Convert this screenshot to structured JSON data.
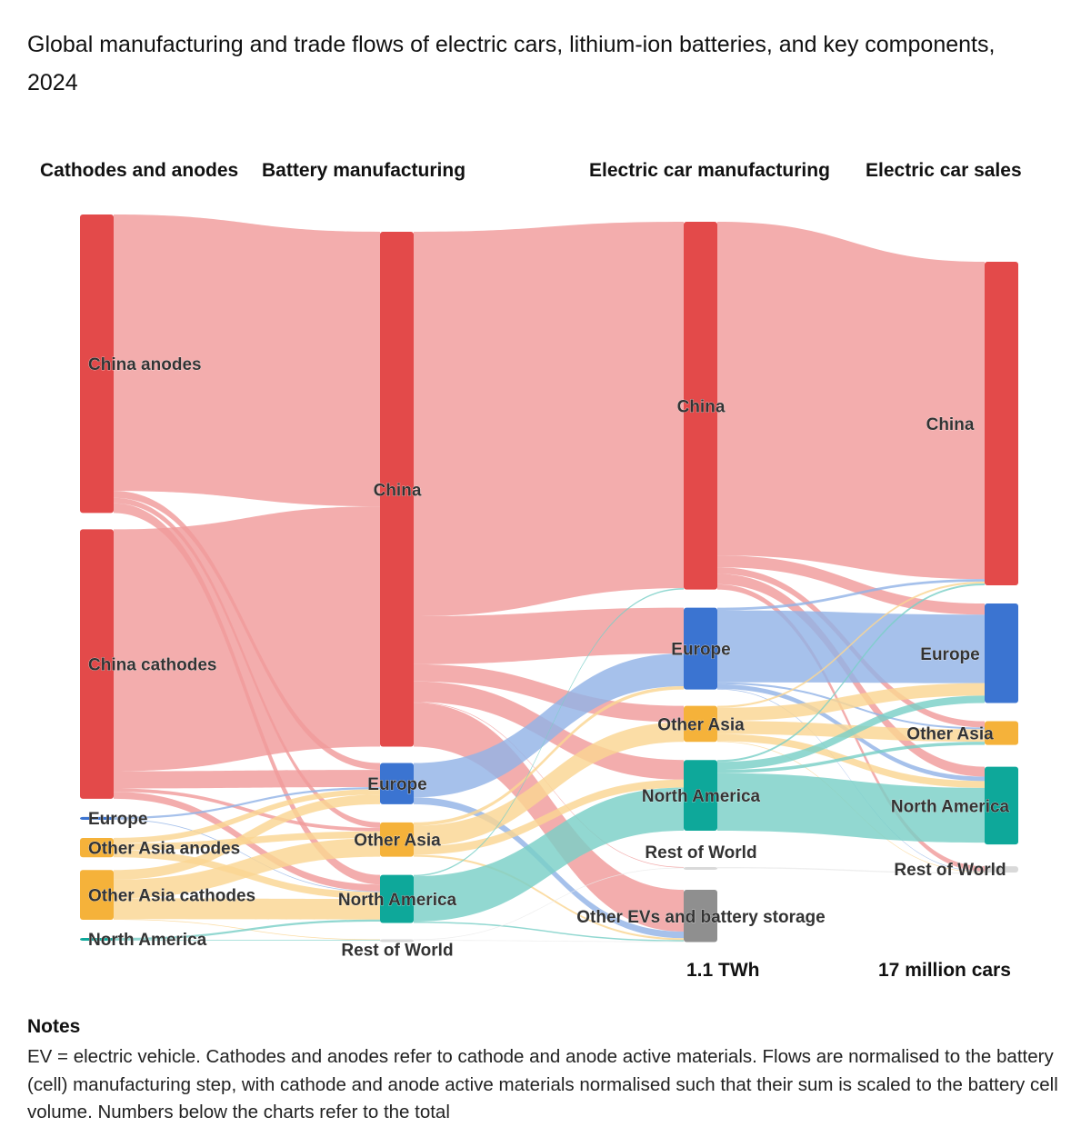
{
  "title": "Global manufacturing and trade flows of electric cars, lithium-ion batteries, and key components, 2024",
  "chart_data": {
    "type": "sankey",
    "title": "Global manufacturing and trade flows of electric cars, lithium-ion batteries, and key components, 2024",
    "stages": [
      "Cathodes and anodes",
      "Battery manufacturing",
      "Electric car manufacturing",
      "Electric car sales"
    ],
    "totals": {
      "battery": "1.1 TWh",
      "cars": "17 million cars"
    },
    "colors": {
      "China": "#e34a4a",
      "Europe": "#3b74d1",
      "Other Asia": "#f5b23a",
      "North America": "#0ea89a",
      "Rest of World": "#d9d9d9",
      "Other EVs and battery storage": "#8f8f8f"
    },
    "nodes": [
      {
        "id": "s0_china_anodes",
        "stage": 0,
        "label": "China anodes",
        "region": "China",
        "value": 432
      },
      {
        "id": "s0_china_cathodes",
        "stage": 0,
        "label": "China cathodes",
        "region": "China",
        "value": 390
      },
      {
        "id": "s0_europe",
        "stage": 0,
        "label": "Europe",
        "region": "Europe",
        "value": 4
      },
      {
        "id": "s0_oa_anodes",
        "stage": 0,
        "label": "Other Asia anodes",
        "region": "Other Asia",
        "value": 28
      },
      {
        "id": "s0_oa_cathodes",
        "stage": 0,
        "label": "Other Asia cathodes",
        "region": "Other Asia",
        "value": 72
      },
      {
        "id": "s0_na",
        "stage": 0,
        "label": "North America",
        "region": "North America",
        "value": 4
      },
      {
        "id": "s1_china",
        "stage": 1,
        "label": "China",
        "region": "China",
        "value": 750
      },
      {
        "id": "s1_europe",
        "stage": 1,
        "label": "Europe",
        "region": "Europe",
        "value": 60
      },
      {
        "id": "s1_oa",
        "stage": 1,
        "label": "Other Asia",
        "region": "Other Asia",
        "value": 50
      },
      {
        "id": "s1_na",
        "stage": 1,
        "label": "North America",
        "region": "North America",
        "value": 70
      },
      {
        "id": "s1_row",
        "stage": 1,
        "label": "Rest of World",
        "region": "Rest of World",
        "value": 2
      },
      {
        "id": "s2_china",
        "stage": 2,
        "label": "China",
        "region": "China",
        "value": 562
      },
      {
        "id": "s2_europe",
        "stage": 2,
        "label": "Europe",
        "region": "Europe",
        "value": 125
      },
      {
        "id": "s2_oa",
        "stage": 2,
        "label": "Other Asia",
        "region": "Other Asia",
        "value": 55
      },
      {
        "id": "s2_na",
        "stage": 2,
        "label": "North America",
        "region": "North America",
        "value": 108
      },
      {
        "id": "s2_row",
        "stage": 2,
        "label": "Rest of World",
        "region": "Rest of World",
        "value": 2
      },
      {
        "id": "s2_other",
        "stage": 2,
        "label": "Other EVs and battery storage",
        "region": "Other EVs and battery storage",
        "value": 80
      },
      {
        "id": "s3_china",
        "stage": 3,
        "label": "China",
        "region": "China",
        "value": 520
      },
      {
        "id": "s3_europe",
        "stage": 3,
        "label": "Europe",
        "region": "Europe",
        "value": 160
      },
      {
        "id": "s3_oa",
        "stage": 3,
        "label": "Other Asia",
        "region": "Other Asia",
        "value": 38
      },
      {
        "id": "s3_na",
        "stage": 3,
        "label": "North America",
        "region": "North America",
        "value": 125
      },
      {
        "id": "s3_row",
        "stage": 3,
        "label": "Rest of World",
        "region": "Rest of World",
        "value": 10
      }
    ],
    "links": [
      {
        "source": "s0_china_anodes",
        "target": "s1_china",
        "value": 400
      },
      {
        "source": "s0_china_anodes",
        "target": "s1_europe",
        "value": 10
      },
      {
        "source": "s0_china_anodes",
        "target": "s1_oa",
        "value": 8
      },
      {
        "source": "s0_china_anodes",
        "target": "s1_na",
        "value": 14
      },
      {
        "source": "s0_china_cathodes",
        "target": "s1_china",
        "value": 350
      },
      {
        "source": "s0_china_cathodes",
        "target": "s1_europe",
        "value": 25
      },
      {
        "source": "s0_china_cathodes",
        "target": "s1_oa",
        "value": 5
      },
      {
        "source": "s0_china_cathodes",
        "target": "s1_na",
        "value": 10
      },
      {
        "source": "s0_europe",
        "target": "s1_europe",
        "value": 3
      },
      {
        "source": "s0_europe",
        "target": "s1_na",
        "value": 1
      },
      {
        "source": "s0_oa_anodes",
        "target": "s1_europe",
        "value": 8
      },
      {
        "source": "s0_oa_anodes",
        "target": "s1_oa",
        "value": 10
      },
      {
        "source": "s0_oa_anodes",
        "target": "s1_na",
        "value": 10
      },
      {
        "source": "s0_oa_cathodes",
        "target": "s1_europe",
        "value": 14
      },
      {
        "source": "s0_oa_cathodes",
        "target": "s1_oa",
        "value": 27
      },
      {
        "source": "s0_oa_cathodes",
        "target": "s1_na",
        "value": 30
      },
      {
        "source": "s0_oa_cathodes",
        "target": "s1_row",
        "value": 1
      },
      {
        "source": "s0_na",
        "target": "s1_na",
        "value": 3
      },
      {
        "source": "s0_na",
        "target": "s1_row",
        "value": 1
      },
      {
        "source": "s1_china",
        "target": "s2_china",
        "value": 560
      },
      {
        "source": "s1_china",
        "target": "s2_europe",
        "value": 70
      },
      {
        "source": "s1_china",
        "target": "s2_oa",
        "value": 25
      },
      {
        "source": "s1_china",
        "target": "s2_na",
        "value": 30
      },
      {
        "source": "s1_china",
        "target": "s2_row",
        "value": 1
      },
      {
        "source": "s1_china",
        "target": "s2_other",
        "value": 64
      },
      {
        "source": "s1_europe",
        "target": "s2_europe",
        "value": 50
      },
      {
        "source": "s1_europe",
        "target": "s2_other",
        "value": 10
      },
      {
        "source": "s1_oa",
        "target": "s2_europe",
        "value": 5
      },
      {
        "source": "s1_oa",
        "target": "s2_oa",
        "value": 30
      },
      {
        "source": "s1_oa",
        "target": "s2_na",
        "value": 12
      },
      {
        "source": "s1_oa",
        "target": "s2_other",
        "value": 3
      },
      {
        "source": "s1_na",
        "target": "s2_china",
        "value": 2
      },
      {
        "source": "s1_na",
        "target": "s2_na",
        "value": 66
      },
      {
        "source": "s1_na",
        "target": "s2_other",
        "value": 2
      },
      {
        "source": "s1_row",
        "target": "s2_row",
        "value": 1
      },
      {
        "source": "s1_row",
        "target": "s2_other",
        "value": 1
      },
      {
        "source": "s2_china",
        "target": "s3_china",
        "value": 510
      },
      {
        "source": "s2_china",
        "target": "s3_europe",
        "value": 18
      },
      {
        "source": "s2_china",
        "target": "s3_oa",
        "value": 10
      },
      {
        "source": "s2_china",
        "target": "s3_na",
        "value": 16
      },
      {
        "source": "s2_china",
        "target": "s3_row",
        "value": 8
      },
      {
        "source": "s2_europe",
        "target": "s3_china",
        "value": 4
      },
      {
        "source": "s2_europe",
        "target": "s3_europe",
        "value": 110
      },
      {
        "source": "s2_europe",
        "target": "s3_oa",
        "value": 3
      },
      {
        "source": "s2_europe",
        "target": "s3_na",
        "value": 7
      },
      {
        "source": "s2_europe",
        "target": "s3_row",
        "value": 1
      },
      {
        "source": "s2_oa",
        "target": "s3_china",
        "value": 3
      },
      {
        "source": "s2_oa",
        "target": "s3_europe",
        "value": 20
      },
      {
        "source": "s2_oa",
        "target": "s3_oa",
        "value": 20
      },
      {
        "source": "s2_oa",
        "target": "s3_na",
        "value": 11
      },
      {
        "source": "s2_oa",
        "target": "s3_row",
        "value": 1
      },
      {
        "source": "s2_na",
        "target": "s3_china",
        "value": 3
      },
      {
        "source": "s2_na",
        "target": "s3_europe",
        "value": 12
      },
      {
        "source": "s2_na",
        "target": "s3_oa",
        "value": 5
      },
      {
        "source": "s2_na",
        "target": "s3_na",
        "value": 88
      },
      {
        "source": "s2_row",
        "target": "s3_row",
        "value": 2
      }
    ]
  },
  "notes": {
    "heading": "Notes",
    "text": "EV = electric vehicle. Cathodes and anodes refer to cathode and anode active materials. Flows are normalised to the battery (cell) manufacturing step, with cathode and anode active materials normalised such that their sum is scaled to the battery cell volume. Numbers below the charts refer to the total"
  }
}
